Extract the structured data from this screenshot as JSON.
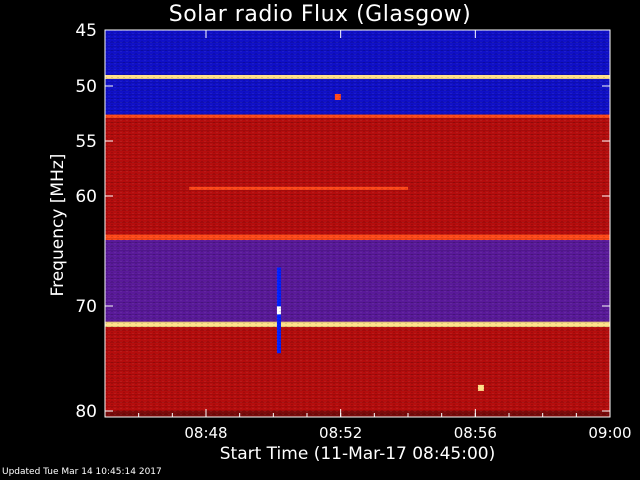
{
  "chart_data": {
    "type": "heatmap",
    "title": "Solar radio Flux (Glasgow)",
    "xlabel": "Start Time (11-Mar-17 08:45:00)",
    "ylabel": "Frequency [MHz]",
    "x_range": [
      "08:45",
      "09:00"
    ],
    "x_ticks": [
      "08:48",
      "08:52",
      "08:56",
      "09:00"
    ],
    "y_range": [
      45,
      80
    ],
    "y_ticks": [
      45,
      50,
      55,
      60,
      70,
      80
    ],
    "y_scale": "nonlinear",
    "colormap": [
      "#000080",
      "#1a1aff",
      "#cc0000",
      "#ff3300",
      "#ffcc66",
      "#ffffff"
    ],
    "bands": [
      {
        "freq_start": 45.0,
        "freq_end": 46.2,
        "level": "low"
      },
      {
        "freq_start": 46.2,
        "freq_end": 48.9,
        "level": "low"
      },
      {
        "freq_start": 48.9,
        "freq_end": 49.3,
        "level": "very-high"
      },
      {
        "freq_start": 49.3,
        "freq_end": 52.6,
        "level": "low"
      },
      {
        "freq_start": 52.6,
        "freq_end": 52.9,
        "level": "high"
      },
      {
        "freq_start": 52.9,
        "freq_end": 63.5,
        "level": "medium"
      },
      {
        "freq_start": 63.5,
        "freq_end": 64.0,
        "level": "high"
      },
      {
        "freq_start": 64.0,
        "freq_end": 71.5,
        "level": "low-medium"
      },
      {
        "freq_start": 71.5,
        "freq_end": 72.0,
        "level": "very-high"
      },
      {
        "freq_start": 72.0,
        "freq_end": 80.0,
        "level": "medium"
      }
    ],
    "features": [
      {
        "kind": "horizontal-line",
        "freq": 59.3,
        "time_start": "08:47:30",
        "time_end": "08:54:00",
        "level": "high"
      },
      {
        "kind": "vertical-spike",
        "time": "08:50:10",
        "freq_start": 66.5,
        "freq_end": 74.5,
        "level": "high"
      },
      {
        "kind": "spot",
        "time": "08:51:55",
        "freq": 51.0,
        "level": "high"
      },
      {
        "kind": "spot",
        "time": "08:56:10",
        "freq": 77.8,
        "level": "very-high"
      }
    ]
  },
  "footer": "Updated Tue Mar 14 10:45:14 2017"
}
